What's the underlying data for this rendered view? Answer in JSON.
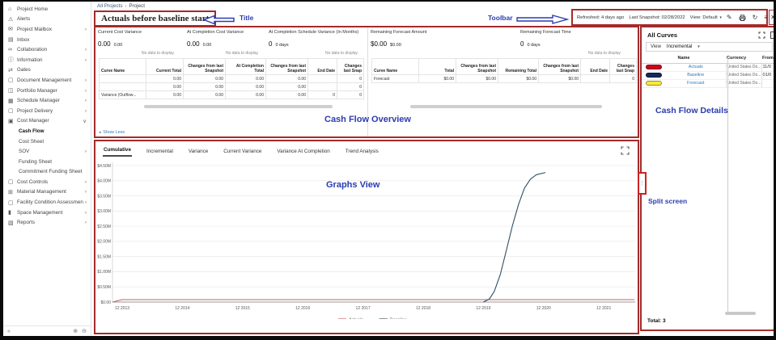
{
  "window": {
    "breadcrumb_root": "All Projects",
    "breadcrumb_sep": "›",
    "breadcrumb_current": "Project",
    "close": "✕"
  },
  "annotations": {
    "title": "Title",
    "toolbar": "Toolbar",
    "overview": "Cash Flow Overview",
    "graphs": "Graphs View",
    "details": "Cash Flow Details",
    "split": "Split screen",
    "accent_blue": "#2b3cb0",
    "box_red": "#a32b2b"
  },
  "header": {
    "title": "Actuals before baseline start",
    "toolbar": {
      "refreshed": "Refreshed: 4 days ago",
      "last_snapshot": "Last Snapshot: 02/28/2022",
      "view_label": "View:",
      "view_value": "Default",
      "caret": "▾",
      "edit_icon": "✎",
      "refresh_icon": "↻",
      "menu_icon": "≡"
    }
  },
  "sidebar": {
    "items": [
      {
        "label": "Project Home",
        "icon": "org-chart-icon",
        "chevron": "none"
      },
      {
        "label": "Alerts",
        "icon": "alert-icon",
        "chevron": "none"
      },
      {
        "label": "Project Mailbox",
        "icon": "mail-icon",
        "chevron": "right"
      },
      {
        "label": "Inbox",
        "icon": "inbox-icon",
        "chevron": "none"
      },
      {
        "label": "Collaboration",
        "icon": "collaboration-icon",
        "chevron": "right"
      },
      {
        "label": "Information",
        "icon": "info-icon",
        "chevron": "right"
      },
      {
        "label": "Gates",
        "icon": "gates-icon",
        "chevron": "none"
      },
      {
        "label": "Document Management",
        "icon": "folder-icon",
        "chevron": "right"
      },
      {
        "label": "Portfolio Manager",
        "icon": "portfolio-icon",
        "chevron": "right"
      },
      {
        "label": "Schedule Manager",
        "icon": "calendar-icon",
        "chevron": "right"
      },
      {
        "label": "Project Delivery",
        "icon": "folder-icon",
        "chevron": "right"
      },
      {
        "label": "Cost Manager",
        "icon": "cost-manager-icon",
        "chevron": "down"
      },
      {
        "label": "Cash Flow",
        "sub": true,
        "selected": true,
        "chevron": "none"
      },
      {
        "label": "Cost Sheet",
        "sub": true,
        "chevron": "none"
      },
      {
        "label": "SOV",
        "sub": true,
        "chevron": "right"
      },
      {
        "label": "Funding Sheet",
        "sub": true,
        "chevron": "none"
      },
      {
        "label": "Commitment Funding Sheet",
        "sub": true,
        "chevron": "none"
      },
      {
        "label": "Cost Controls",
        "icon": "folder-icon",
        "chevron": "right"
      },
      {
        "label": "Material Management",
        "icon": "material-icon",
        "chevron": "right"
      },
      {
        "label": "Facility Condition Assessment",
        "icon": "folder-icon",
        "chevron": "right"
      },
      {
        "label": "Space Management",
        "icon": "book-icon",
        "chevron": "right"
      },
      {
        "label": "Reports",
        "icon": "report-icon",
        "chevron": "right"
      }
    ],
    "footer": {
      "collapse": "«",
      "icon1": "⊕",
      "icon2": "⊖"
    }
  },
  "overview": {
    "cards": [
      {
        "title": "Current Cost Variance",
        "value": "0.00",
        "sub": "0.00",
        "note": "No data to display"
      },
      {
        "title": "At Completion Cost Variance",
        "value": "0.00",
        "sub": "0.00",
        "note": "No data to display"
      },
      {
        "title": "At Completion Schedule Variance (In Months)",
        "value": "0",
        "sub": "0 days",
        "note": "No data to display"
      },
      {
        "title": "Remaining Forecast Amount",
        "value": "$0.00",
        "sub": "$0.00",
        "note": ""
      },
      {
        "title": "Remaining Forecast Time",
        "value": "0",
        "sub": "0 days",
        "note": "No data to display"
      }
    ],
    "left_table": {
      "headers": [
        "Curve Name",
        "Current Total",
        "Changes from last Snapshot",
        "At Completion Total",
        "Changes from last Snapshot",
        "End Date",
        "Changes last Snap"
      ],
      "rows": [
        [
          "",
          "0.00",
          "0.00",
          "0.00",
          "0.00",
          "",
          "0"
        ],
        [
          "",
          "0.00",
          "0.00",
          "0.00",
          "0.00",
          "",
          "0"
        ],
        [
          "Variance (Outflow...",
          "0.00",
          "0.00",
          "0.00",
          "0.00",
          "0",
          "0"
        ]
      ]
    },
    "right_table": {
      "headers": [
        "Curve Name",
        "Total",
        "Changes from last Snapshot",
        "Remaining Total",
        "Changes from last Snapshot",
        "End Date",
        "Changes last Snap"
      ],
      "rows": [
        [
          "Forecast",
          "$0.00",
          "$0.00",
          "$0.00",
          "$0.00",
          "",
          "0"
        ]
      ]
    },
    "show_less": "Show Less"
  },
  "graphs": {
    "tabs": [
      "Cumulative",
      "Incremental",
      "Variance",
      "Current Variance",
      "Variance At Completion",
      "Trend Analysis"
    ],
    "active_tab": "Cumulative"
  },
  "chart_data": {
    "type": "line",
    "title": "",
    "x_ticks": [
      "12 2013",
      "12 2014",
      "12 2015",
      "12 2016",
      "12 2017",
      "12 2018",
      "12 2019",
      "12 2020",
      "12 2021"
    ],
    "x_tick_years": [
      2013.92,
      2014.92,
      2015.92,
      2016.92,
      2017.92,
      2018.92,
      2019.92,
      2020.92,
      2021.92
    ],
    "y_ticks": [
      "$0.00",
      "$0.50M",
      "$1.00M",
      "$1.50M",
      "$2.00M",
      "$2.50M",
      "$3.00M",
      "$3.50M",
      "$4.00M",
      "$4.50M"
    ],
    "ylim": [
      0,
      4500000
    ],
    "grid": true,
    "legend": [
      "Actuals",
      "Baseline"
    ],
    "legend_position": "bottom",
    "series": [
      {
        "name": "Actuals",
        "color": "#c36060",
        "points": [
          [
            2013.76,
            0
          ],
          [
            2013.92,
            80000
          ],
          [
            2022.43,
            80000
          ]
        ]
      },
      {
        "name": "Baseline",
        "color": "#2f4f66",
        "points": [
          [
            2019.92,
            0
          ],
          [
            2020.02,
            100000
          ],
          [
            2020.1,
            350000
          ],
          [
            2020.2,
            900000
          ],
          [
            2020.3,
            1700000
          ],
          [
            2020.4,
            2500000
          ],
          [
            2020.5,
            3200000
          ],
          [
            2020.6,
            3750000
          ],
          [
            2020.7,
            4050000
          ],
          [
            2020.8,
            4200000
          ],
          [
            2020.95,
            4270000
          ]
        ]
      },
      {
        "name": "Forecast",
        "color": "#e8d44d",
        "points": []
      }
    ]
  },
  "curves_panel": {
    "title": "All Curves",
    "view_label": "View",
    "view_value": "Incremental",
    "caret": "▾",
    "columns": [
      "Name",
      "Currency",
      "From"
    ],
    "rows": [
      {
        "name": "Actuals",
        "color": "#d0021b",
        "border": "#7d0012",
        "currency": "United States Do...",
        "from": "11/0"
      },
      {
        "name": "Baseline",
        "color": "#16295c",
        "border": "#0b1533",
        "currency": "United States Do...",
        "from": "01/0"
      },
      {
        "name": "Forecast",
        "color": "#f7e93d",
        "border": "#9a8f1e",
        "currency": "United States Do...",
        "from": ""
      }
    ],
    "total": "Total: 3"
  }
}
